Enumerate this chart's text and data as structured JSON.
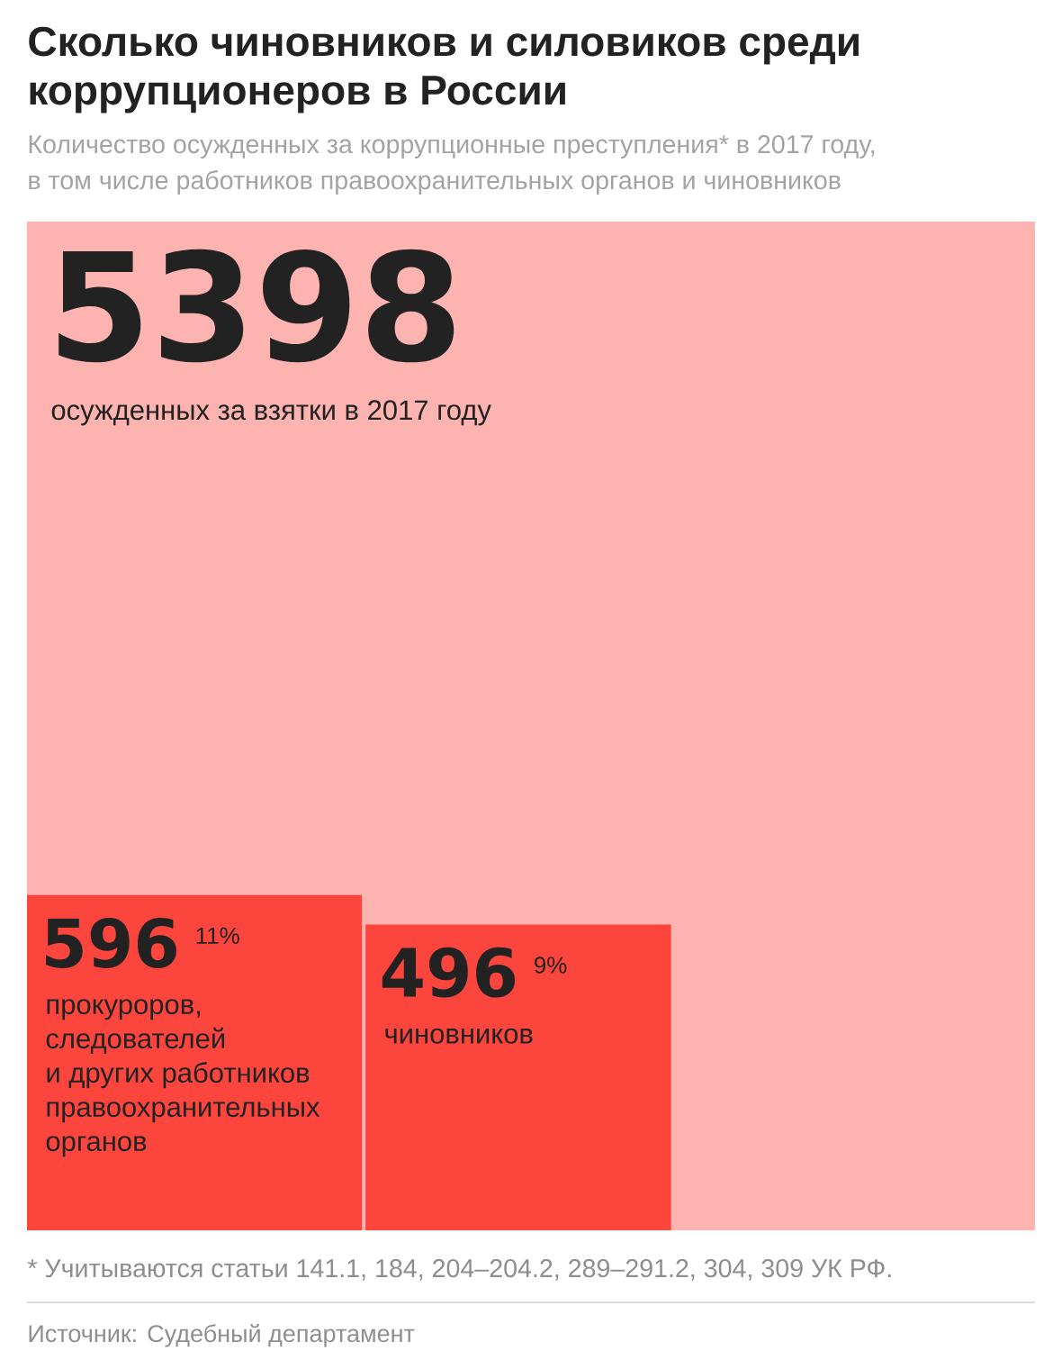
{
  "chart_data": {
    "type": "other",
    "title": "Сколько чиновников и силовиков среди коррупционеров в России",
    "subtitle": "Количество осужденных за коррупционные преступления* в 2017 году, в том числе работников правоохранительных органов и чиновников",
    "categories": [
      "осужденных за взятки в 2017 году",
      "прокуроров, следователей и других работников правоохранительных органов",
      "чиновников"
    ],
    "values": [
      5398,
      596,
      496
    ],
    "colors": [
      "#fdb4b1",
      "#fc463d",
      "#fc463d"
    ],
    "data_labels": true,
    "annotations": [
      {
        "text": "11%",
        "x": "прокуроров, следователей и других работников правоохранительных органов"
      },
      {
        "text": "9%",
        "x": "чиновников"
      },
      "* Учитываются статьи 141.1, 184, 204–204.2, 289–291.2, 304, 309 УК РФ.",
      "Источник: Судебный департамент"
    ]
  }
}
